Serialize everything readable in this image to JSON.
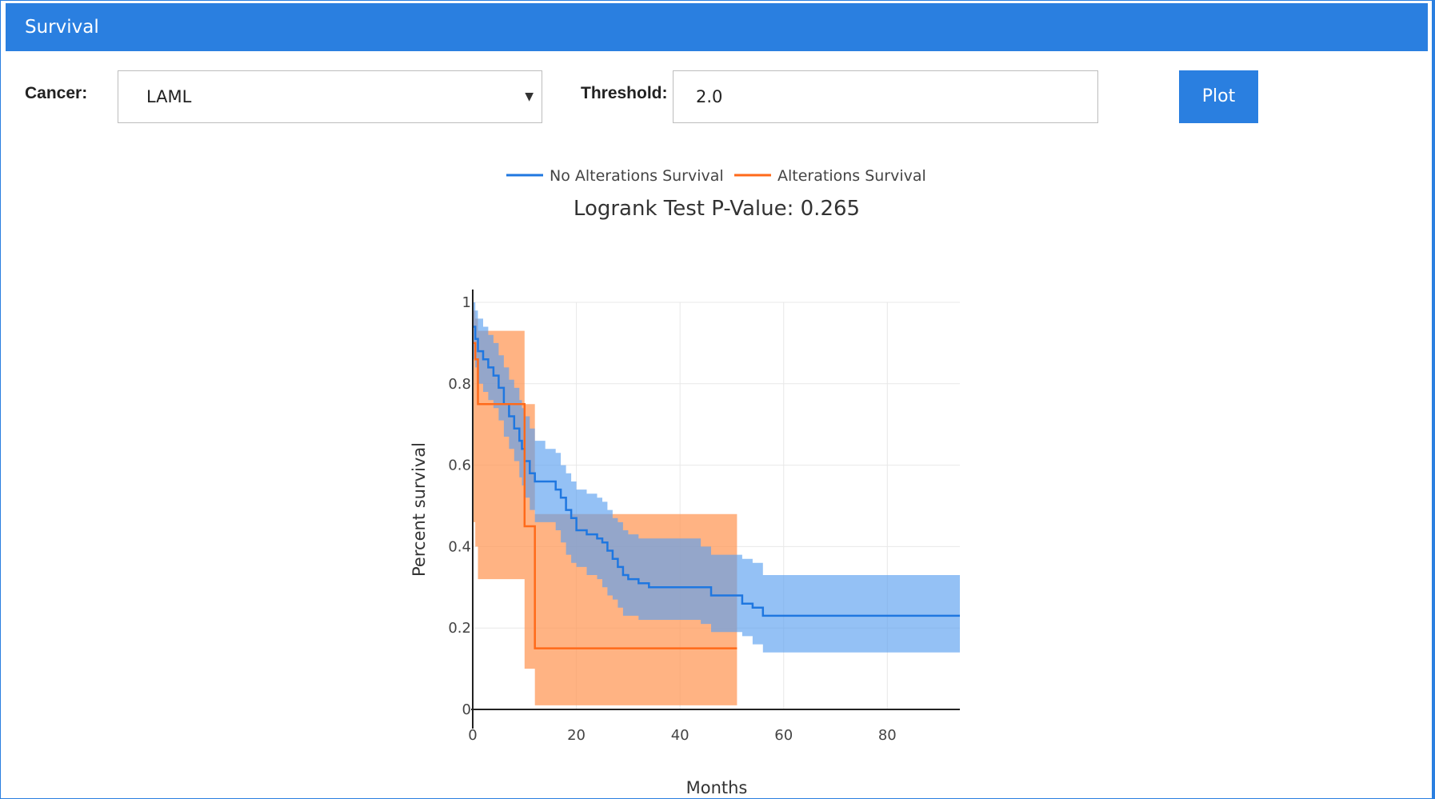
{
  "panel": {
    "title": "Survival"
  },
  "form": {
    "cancer_label": "Cancer:",
    "cancer_value": "LAML",
    "threshold_label": "Threshold:",
    "threshold_value": "2.0",
    "plot_label": "Plot"
  },
  "colors": {
    "accent": "#2a7fe0",
    "no_alt_line": "#1f77e0",
    "no_alt_band": "#5a9ff0",
    "alt_line": "#ff6a1a",
    "alt_band": "#ff9a5a"
  },
  "chart_data": {
    "type": "line",
    "title": "Logrank Test P-Value: 0.265",
    "xlabel": "Months",
    "ylabel": "Percent survival",
    "xlim": [
      0,
      94
    ],
    "ylim": [
      0,
      1
    ],
    "x_ticks": [
      "0",
      "20",
      "40",
      "60",
      "80"
    ],
    "x_tick_values": [
      0,
      20,
      40,
      60,
      80
    ],
    "y_ticks": [
      "0",
      "0.2",
      "0.4",
      "0.6",
      "0.8",
      "1"
    ],
    "y_tick_values": [
      0,
      0.2,
      0.4,
      0.6,
      0.8,
      1
    ],
    "grid": true,
    "legend_placement": "top",
    "series": [
      {
        "name": "No Alterations Survival",
        "color": "#1f77e0",
        "x": [
          0,
          0.5,
          1,
          2,
          3,
          4,
          5,
          6,
          7,
          8,
          9,
          9.5,
          10,
          11,
          12,
          14,
          16,
          17,
          18,
          19,
          20,
          22,
          24,
          25,
          26,
          27,
          28,
          29,
          30,
          32,
          34,
          36,
          40,
          44,
          46,
          52,
          54,
          56,
          94
        ],
        "y": [
          0.94,
          0.91,
          0.88,
          0.86,
          0.84,
          0.82,
          0.79,
          0.75,
          0.72,
          0.69,
          0.66,
          0.64,
          0.61,
          0.58,
          0.56,
          0.56,
          0.54,
          0.52,
          0.49,
          0.47,
          0.44,
          0.43,
          0.42,
          0.41,
          0.39,
          0.37,
          0.35,
          0.33,
          0.32,
          0.31,
          0.3,
          0.3,
          0.3,
          0.3,
          0.28,
          0.26,
          0.25,
          0.23,
          0.23
        ],
        "band_upper": [
          1.0,
          0.98,
          0.96,
          0.94,
          0.92,
          0.9,
          0.87,
          0.84,
          0.81,
          0.79,
          0.76,
          0.74,
          0.72,
          0.69,
          0.66,
          0.64,
          0.63,
          0.6,
          0.58,
          0.56,
          0.54,
          0.53,
          0.52,
          0.51,
          0.49,
          0.47,
          0.46,
          0.44,
          0.43,
          0.42,
          0.42,
          0.42,
          0.42,
          0.4,
          0.38,
          0.37,
          0.36,
          0.33,
          0.33
        ],
        "band_lower": [
          0.86,
          0.84,
          0.8,
          0.78,
          0.76,
          0.74,
          0.71,
          0.67,
          0.64,
          0.61,
          0.57,
          0.55,
          0.52,
          0.49,
          0.46,
          0.46,
          0.44,
          0.41,
          0.38,
          0.36,
          0.35,
          0.33,
          0.32,
          0.3,
          0.28,
          0.27,
          0.25,
          0.23,
          0.23,
          0.22,
          0.22,
          0.22,
          0.22,
          0.21,
          0.19,
          0.18,
          0.16,
          0.14,
          0.14
        ]
      },
      {
        "name": "Alterations Survival",
        "color": "#ff6a1a",
        "x": [
          0,
          0.5,
          1,
          10,
          11,
          12,
          51
        ],
        "y": [
          0.9,
          0.86,
          0.75,
          0.45,
          0.45,
          0.15,
          0.15
        ],
        "band_upper": [
          0.98,
          0.96,
          0.93,
          0.75,
          0.75,
          0.48,
          0.48
        ],
        "band_lower": [
          0.46,
          0.4,
          0.32,
          0.1,
          0.1,
          0.01,
          0.01
        ]
      }
    ]
  }
}
